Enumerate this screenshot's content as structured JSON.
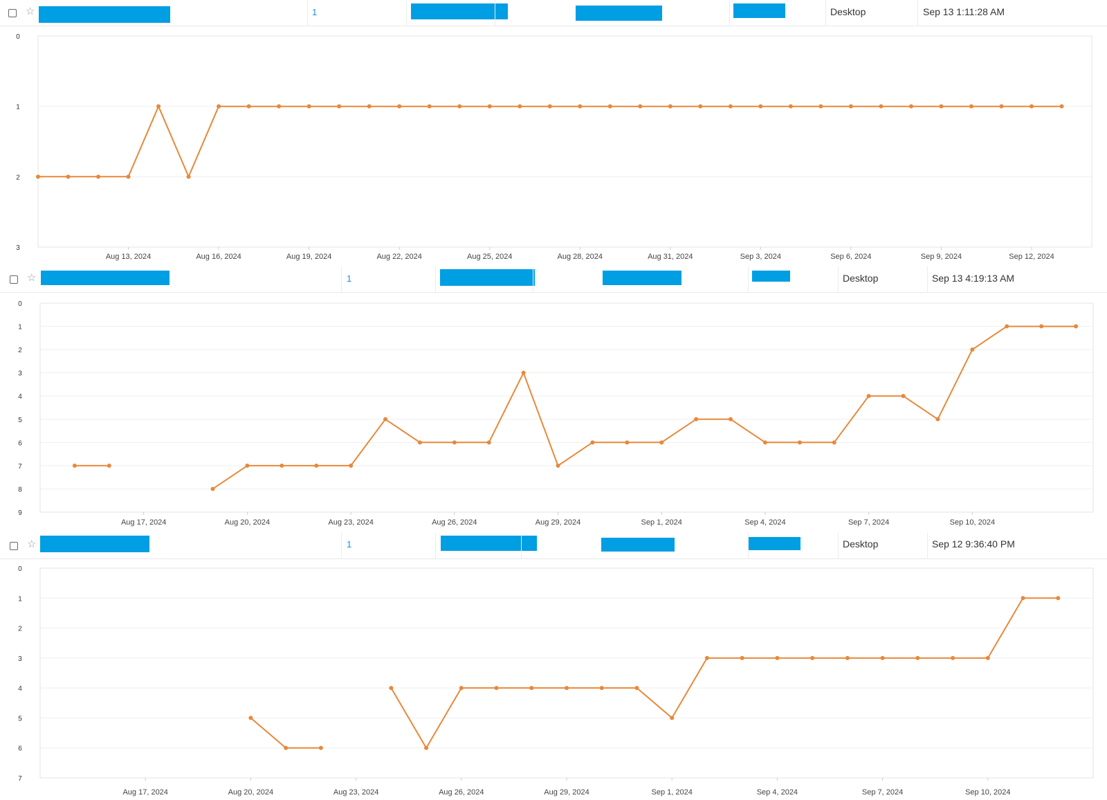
{
  "keywords": [
    {
      "rank_value": "1",
      "device": "Desktop",
      "updated": "Sep 13 1:11:28 AM",
      "chart_data": {
        "type": "line",
        "y_ticks": [
          "0",
          "1",
          "2",
          "3"
        ],
        "x_tick_labels": [
          "Aug 13, 2024",
          "Aug 16, 2024",
          "Aug 19, 2024",
          "Aug 22, 2024",
          "Aug 25, 2024",
          "Aug 28, 2024",
          "Aug 31, 2024",
          "Sep 3, 2024",
          "Sep 6, 2024",
          "Sep 9, 2024",
          "Sep 12, 2024"
        ],
        "ylim": [
          0,
          3
        ],
        "y_inverted": true,
        "x_start": "Aug 10, 2024",
        "series": [
          {
            "color": "#e8883a",
            "segments": [
              [
                [
                  "Aug 10, 2024",
                  2
                ],
                [
                  "Aug 11, 2024",
                  2
                ],
                [
                  "Aug 12, 2024",
                  2
                ],
                [
                  "Aug 13, 2024",
                  2
                ],
                [
                  "Aug 14, 2024",
                  1
                ],
                [
                  "Aug 15, 2024",
                  2
                ],
                [
                  "Aug 16, 2024",
                  1
                ],
                [
                  "Aug 17, 2024",
                  1
                ],
                [
                  "Aug 18, 2024",
                  1
                ],
                [
                  "Aug 19, 2024",
                  1
                ],
                [
                  "Aug 20, 2024",
                  1
                ],
                [
                  "Aug 21, 2024",
                  1
                ],
                [
                  "Aug 22, 2024",
                  1
                ],
                [
                  "Aug 23, 2024",
                  1
                ],
                [
                  "Aug 24, 2024",
                  1
                ],
                [
                  "Aug 25, 2024",
                  1
                ],
                [
                  "Aug 26, 2024",
                  1
                ],
                [
                  "Aug 27, 2024",
                  1
                ],
                [
                  "Aug 28, 2024",
                  1
                ],
                [
                  "Aug 29, 2024",
                  1
                ],
                [
                  "Aug 30, 2024",
                  1
                ],
                [
                  "Aug 31, 2024",
                  1
                ],
                [
                  "Sep 1, 2024",
                  1
                ],
                [
                  "Sep 2, 2024",
                  1
                ],
                [
                  "Sep 3, 2024",
                  1
                ],
                [
                  "Sep 4, 2024",
                  1
                ],
                [
                  "Sep 5, 2024",
                  1
                ],
                [
                  "Sep 6, 2024",
                  1
                ],
                [
                  "Sep 7, 2024",
                  1
                ],
                [
                  "Sep 8, 2024",
                  1
                ],
                [
                  "Sep 9, 2024",
                  1
                ],
                [
                  "Sep 10, 2024",
                  1
                ],
                [
                  "Sep 11, 2024",
                  1
                ],
                [
                  "Sep 12, 2024",
                  1
                ],
                [
                  "Sep 13, 2024",
                  1
                ]
              ]
            ]
          }
        ]
      }
    },
    {
      "rank_value": "1",
      "device": "Desktop",
      "updated": "Sep 13 4:19:13 AM",
      "chart_data": {
        "type": "line",
        "y_ticks": [
          "0",
          "1",
          "2",
          "3",
          "4",
          "5",
          "6",
          "7",
          "8",
          "9"
        ],
        "x_tick_labels": [
          "Aug 17, 2024",
          "Aug 20, 2024",
          "Aug 23, 2024",
          "Aug 26, 2024",
          "Aug 29, 2024",
          "Sep 1, 2024",
          "Sep 4, 2024",
          "Sep 7, 2024",
          "Sep 10, 2024"
        ],
        "ylim": [
          0,
          9
        ],
        "y_inverted": true,
        "x_start": "Aug 14, 2024",
        "series": [
          {
            "color": "#e8883a",
            "segments": [
              [
                [
                  "Aug 15, 2024",
                  7
                ],
                [
                  "Aug 16, 2024",
                  7
                ]
              ],
              [
                [
                  "Aug 19, 2024",
                  8
                ],
                [
                  "Aug 20, 2024",
                  7
                ],
                [
                  "Aug 21, 2024",
                  7
                ],
                [
                  "Aug 22, 2024",
                  7
                ],
                [
                  "Aug 23, 2024",
                  7
                ],
                [
                  "Aug 24, 2024",
                  5
                ],
                [
                  "Aug 25, 2024",
                  6
                ],
                [
                  "Aug 26, 2024",
                  6
                ],
                [
                  "Aug 27, 2024",
                  6
                ],
                [
                  "Aug 28, 2024",
                  3
                ],
                [
                  "Aug 29, 2024",
                  7
                ],
                [
                  "Aug 30, 2024",
                  6
                ],
                [
                  "Aug 31, 2024",
                  6
                ],
                [
                  "Sep 1, 2024",
                  6
                ],
                [
                  "Sep 2, 2024",
                  5
                ],
                [
                  "Sep 3, 2024",
                  5
                ],
                [
                  "Sep 4, 2024",
                  6
                ],
                [
                  "Sep 5, 2024",
                  6
                ],
                [
                  "Sep 6, 2024",
                  6
                ],
                [
                  "Sep 7, 2024",
                  4
                ],
                [
                  "Sep 8, 2024",
                  4
                ],
                [
                  "Sep 9, 2024",
                  5
                ],
                [
                  "Sep 10, 2024",
                  2
                ],
                [
                  "Sep 11, 2024",
                  1
                ],
                [
                  "Sep 12, 2024",
                  1
                ],
                [
                  "Sep 13, 2024",
                  1
                ]
              ]
            ]
          }
        ]
      }
    },
    {
      "rank_value": "1",
      "device": "Desktop",
      "updated": "Sep 12 9:36:40 PM",
      "chart_data": {
        "type": "line",
        "y_ticks": [
          "0",
          "1",
          "2",
          "3",
          "4",
          "5",
          "6",
          "7"
        ],
        "x_tick_labels": [
          "Aug 17, 2024",
          "Aug 20, 2024",
          "Aug 23, 2024",
          "Aug 26, 2024",
          "Aug 29, 2024",
          "Sep 1, 2024",
          "Sep 4, 2024",
          "Sep 7, 2024",
          "Sep 10, 2024"
        ],
        "ylim": [
          0,
          7
        ],
        "y_inverted": true,
        "x_start": "Aug 14, 2024",
        "series": [
          {
            "color": "#e8883a",
            "segments": [
              [
                [
                  "Aug 20, 2024",
                  5
                ],
                [
                  "Aug 21, 2024",
                  6
                ],
                [
                  "Aug 22, 2024",
                  6
                ]
              ],
              [
                [
                  "Aug 24, 2024",
                  4
                ],
                [
                  "Aug 25, 2024",
                  6
                ],
                [
                  "Aug 26, 2024",
                  4
                ],
                [
                  "Aug 27, 2024",
                  4
                ],
                [
                  "Aug 28, 2024",
                  4
                ],
                [
                  "Aug 29, 2024",
                  4
                ],
                [
                  "Aug 30, 2024",
                  4
                ],
                [
                  "Aug 31, 2024",
                  4
                ],
                [
                  "Sep 1, 2024",
                  5
                ],
                [
                  "Sep 2, 2024",
                  3
                ],
                [
                  "Sep 3, 2024",
                  3
                ],
                [
                  "Sep 4, 2024",
                  3
                ],
                [
                  "Sep 5, 2024",
                  3
                ],
                [
                  "Sep 6, 2024",
                  3
                ],
                [
                  "Sep 7, 2024",
                  3
                ],
                [
                  "Sep 8, 2024",
                  3
                ],
                [
                  "Sep 9, 2024",
                  3
                ],
                [
                  "Sep 10, 2024",
                  3
                ],
                [
                  "Sep 11, 2024",
                  1
                ],
                [
                  "Sep 12, 2024",
                  1
                ]
              ]
            ]
          }
        ]
      }
    }
  ]
}
